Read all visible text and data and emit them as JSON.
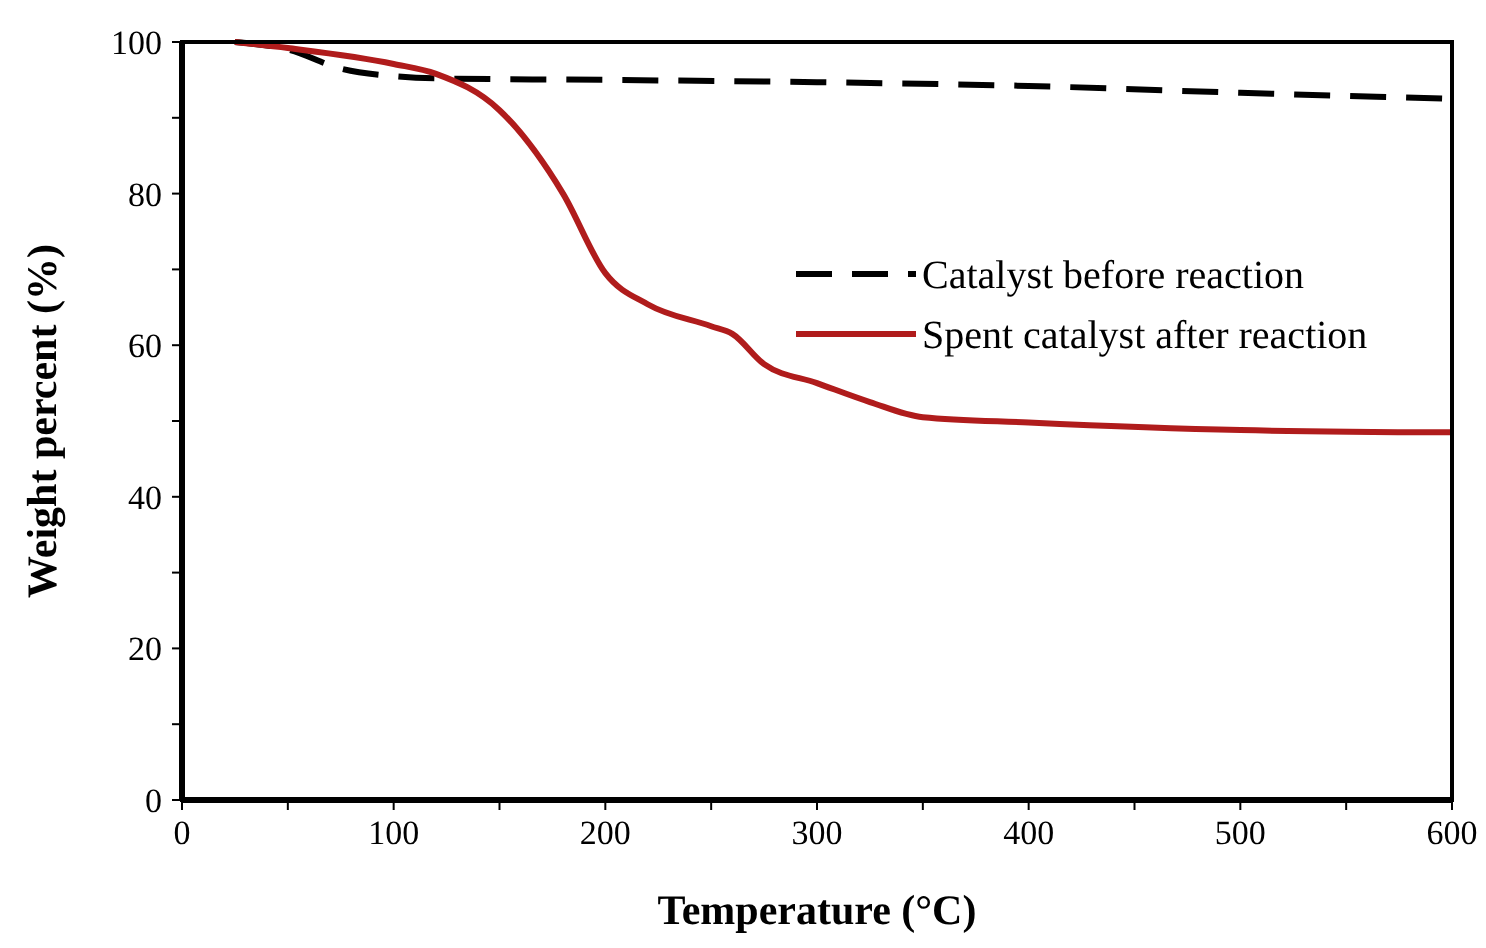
{
  "chart_data": {
    "type": "line",
    "xlabel": "Temperature (°C)",
    "ylabel": "Weight percent (%)",
    "xlim": [
      0,
      600
    ],
    "ylim": [
      0,
      100
    ],
    "xticks": [
      0,
      {
        "value": 50,
        "label": null
      },
      100,
      {
        "value": 150,
        "label": null
      },
      200,
      {
        "value": 250,
        "label": null
      },
      300,
      {
        "value": 350,
        "label": null
      },
      400,
      {
        "value": 450,
        "label": null
      },
      500,
      {
        "value": 550,
        "label": null
      },
      600
    ],
    "yticks": [
      0,
      {
        "value": 10,
        "label": null
      },
      20,
      {
        "value": 30,
        "label": null
      },
      40,
      {
        "value": 50,
        "label": null
      },
      60,
      {
        "value": 70,
        "label": null
      },
      80,
      {
        "value": 90,
        "label": null
      },
      100
    ],
    "grid": false,
    "legend": "right",
    "series": [
      {
        "name": "Catalyst before reaction",
        "color": "#000000",
        "line_style": "dashed",
        "x": [
          25,
          50,
          75,
          100,
          120,
          200,
          300,
          400,
          500,
          600
        ],
        "values": [
          100,
          99,
          96.5,
          95.5,
          95.2,
          95,
          94.7,
          94.2,
          93.3,
          92.5
        ]
      },
      {
        "name": "Spent catalyst after reaction",
        "color": "#b01c1c",
        "line_style": "solid",
        "x": [
          25,
          50,
          100,
          120,
          150,
          180,
          200,
          220,
          250,
          260,
          275,
          300,
          325,
          350,
          400,
          500,
          600
        ],
        "values": [
          100,
          99.2,
          97.1,
          95.8,
          91,
          80,
          69.5,
          65.4,
          62.5,
          61.5,
          57.5,
          55,
          52.5,
          50.5,
          49.8,
          48.8,
          48.5
        ]
      }
    ]
  }
}
